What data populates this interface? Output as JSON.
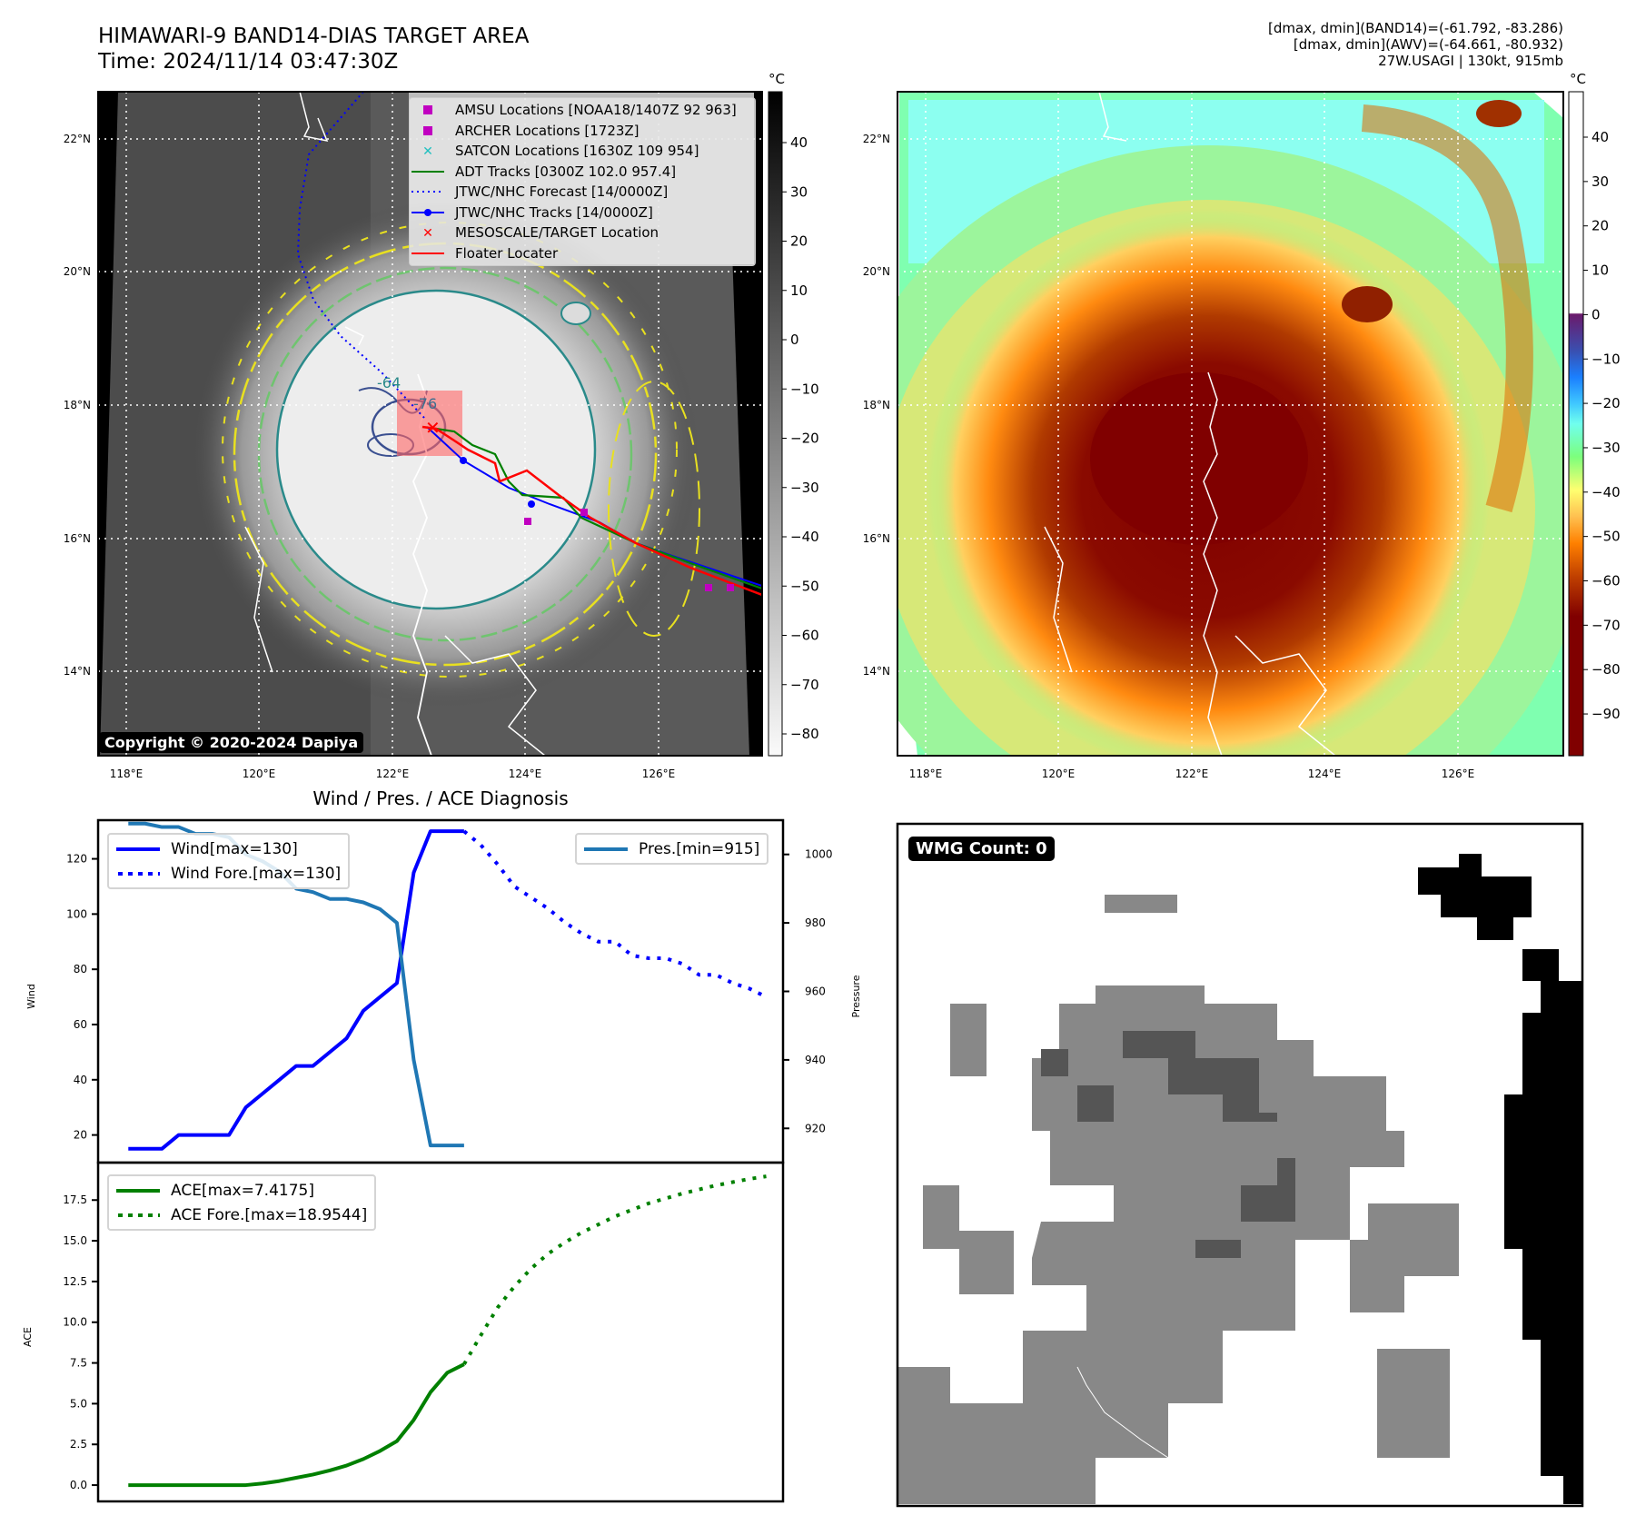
{
  "header": {
    "title_line1": "HIMAWARI-9 BAND14-DIAS TARGET AREA",
    "title_line2": "Time: 2024/11/14 03:47:30Z",
    "info_line1": "[dmax, dmin](BAND14)=(-61.792, -83.286)",
    "info_line2": "[dmax, dmin](AWV)=(-64.661, -80.932)",
    "info_line3": "27W.USAGI | 130kt, 915mb"
  },
  "map_left": {
    "lat_ticks": [
      "22°N",
      "20°N",
      "18°N",
      "16°N",
      "14°N"
    ],
    "lon_ticks": [
      "118°E",
      "120°E",
      "122°E",
      "124°E",
      "126°E"
    ],
    "contour_labels": [
      "-64",
      "-76"
    ],
    "copyright": "Copyright © 2020-2024 Dapiya",
    "colorbar_unit": "°C",
    "colorbar_ticks": [
      "40",
      "30",
      "20",
      "10",
      "0",
      "−10",
      "−20",
      "−30",
      "−40",
      "−50",
      "−60",
      "−70",
      "−80"
    ],
    "legend": [
      {
        "label": "AMSU Locations [NOAA18/1407Z 92 963]",
        "icon": "square-marker",
        "color": "#c000c0"
      },
      {
        "label": "ARCHER Locations [1723Z]",
        "icon": "square-marker",
        "color": "#c000c0"
      },
      {
        "label": "SATCON Locations [1630Z 109 954]",
        "icon": "x-marker",
        "color": "#20c0c0"
      },
      {
        "label": "ADT Tracks [0300Z 102.0 957.4]",
        "icon": "solid-line",
        "color": "#008000"
      },
      {
        "label": "JTWC/NHC Forecast [14/0000Z]",
        "icon": "dotted-line",
        "color": "#0000ff"
      },
      {
        "label": "JTWC/NHC Tracks [14/0000Z]",
        "icon": "line-dot",
        "color": "#0000ff"
      },
      {
        "label": "MESOSCALE/TARGET Location",
        "icon": "x-marker",
        "color": "#ff0000"
      },
      {
        "label": "Floater Locater",
        "icon": "solid-line",
        "color": "#ff0000"
      }
    ]
  },
  "map_right": {
    "lat_ticks": [
      "22°N",
      "20°N",
      "18°N",
      "16°N",
      "14°N"
    ],
    "lon_ticks": [
      "118°E",
      "120°E",
      "122°E",
      "124°E",
      "126°E"
    ],
    "colorbar_unit": "°C",
    "colorbar_ticks": [
      "40",
      "30",
      "20",
      "10",
      "0",
      "−10",
      "−20",
      "−30",
      "−40",
      "−50",
      "−60",
      "−70",
      "−80",
      "−90"
    ]
  },
  "wmg": {
    "badge": "WMG Count: 0"
  },
  "chart_data": [
    {
      "type": "line",
      "title": "Wind / Pres. / ACE Diagnosis",
      "ylabel": "Wind",
      "y2label": "Pressure",
      "ylim": [
        10,
        134
      ],
      "y2lim": [
        910,
        1010
      ],
      "xlim": [
        -1.8,
        39
      ],
      "yticks": [
        "20",
        "40",
        "60",
        "80",
        "100",
        "120"
      ],
      "y2ticks": [
        "920",
        "940",
        "960",
        "980",
        "1000"
      ],
      "series": [
        {
          "name": "Wind[max=130]",
          "color": "#0000ff",
          "style": "solid",
          "axis": "left",
          "x": [
            0,
            1,
            2,
            3,
            4,
            5,
            6,
            7,
            8,
            9,
            10,
            11,
            12,
            13,
            14,
            15,
            16,
            17,
            18,
            19,
            20
          ],
          "values": [
            15,
            15,
            15,
            20,
            20,
            20,
            20,
            30,
            35,
            40,
            45,
            45,
            50,
            55,
            65,
            70,
            75,
            115,
            130,
            130,
            130
          ]
        },
        {
          "name": "Wind Fore.[max=130]",
          "color": "#0000ff",
          "style": "dotted",
          "axis": "left",
          "x": [
            20,
            21,
            22,
            23,
            24,
            25,
            26,
            27,
            28,
            29,
            30,
            31,
            32,
            33,
            34,
            35,
            36,
            37,
            38
          ],
          "values": [
            130,
            125,
            118,
            110,
            106,
            102,
            97,
            93,
            90,
            90,
            85,
            84,
            84,
            82,
            78,
            78,
            75,
            73,
            70
          ]
        },
        {
          "name": "Pres.[min=915]",
          "color": "#1f77b4",
          "style": "solid",
          "axis": "right",
          "x": [
            0,
            1,
            2,
            3,
            4,
            5,
            6,
            7,
            8,
            9,
            10,
            11,
            12,
            13,
            14,
            15,
            16,
            17,
            18,
            19,
            20
          ],
          "values": [
            1009,
            1009,
            1008,
            1008,
            1006,
            1006,
            1005,
            1000,
            998,
            995,
            990,
            989,
            987,
            987,
            986,
            984,
            980,
            940,
            915,
            915,
            915
          ]
        }
      ]
    },
    {
      "type": "line",
      "ylabel": "ACE",
      "ylim": [
        -1,
        19.8
      ],
      "xlim": [
        -1.8,
        39
      ],
      "yticks": [
        "0.0",
        "2.5",
        "5.0",
        "7.5",
        "10.0",
        "12.5",
        "15.0",
        "17.5"
      ],
      "series": [
        {
          "name": "ACE[max=7.4175]",
          "color": "#008000",
          "style": "solid",
          "x": [
            0,
            2,
            4,
            6,
            7,
            8,
            9,
            10,
            11,
            12,
            13,
            14,
            15,
            16,
            17,
            18,
            19,
            20
          ],
          "values": [
            0,
            0,
            0,
            0,
            0,
            0.1,
            0.25,
            0.45,
            0.65,
            0.9,
            1.2,
            1.6,
            2.1,
            2.7,
            4.0,
            5.7,
            6.9,
            7.4175
          ]
        },
        {
          "name": "ACE Fore.[max=18.9544]",
          "color": "#008000",
          "style": "dotted",
          "x": [
            20,
            21,
            22,
            23,
            24,
            25,
            26,
            27,
            28,
            29,
            30,
            31,
            32,
            33,
            34,
            35,
            36,
            37,
            38
          ],
          "values": [
            7.4175,
            9.2,
            10.9,
            12.2,
            13.3,
            14.2,
            14.9,
            15.5,
            16.0,
            16.5,
            16.9,
            17.3,
            17.6,
            17.9,
            18.15,
            18.4,
            18.6,
            18.8,
            18.9544
          ]
        }
      ]
    }
  ]
}
